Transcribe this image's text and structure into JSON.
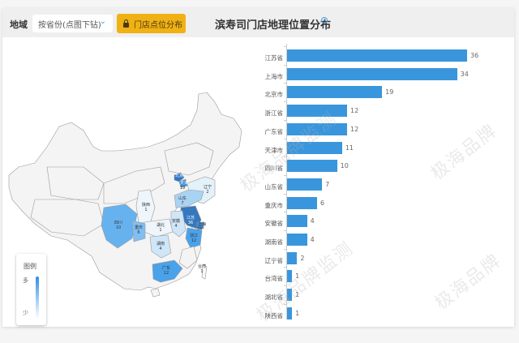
{
  "header": {
    "region_label": "地域",
    "region_select": "按省份(点图下钻)",
    "store_button": "门店点位分布",
    "title": "滨寿司门店地理位置分布",
    "info_icon": "i"
  },
  "legend": {
    "title": "图例",
    "high": "多",
    "low": "少",
    "gradient": [
      "#2f8ee6",
      "#ffffff"
    ]
  },
  "map_labels": [
    {
      "name": "辽宁",
      "value": "2"
    },
    {
      "name": "北京",
      "value": "19"
    },
    {
      "name": "天津",
      "value": "11"
    },
    {
      "name": "山东",
      "value": "7"
    },
    {
      "name": "江苏",
      "value": "36"
    },
    {
      "name": "上海",
      "value": "34"
    },
    {
      "name": "浙江",
      "value": "12"
    },
    {
      "name": "安徽",
      "value": "4"
    },
    {
      "name": "陕西",
      "value": "1"
    },
    {
      "name": "湖北",
      "value": "1"
    },
    {
      "name": "湖南",
      "value": "4"
    },
    {
      "name": "四川",
      "value": "10"
    },
    {
      "name": "重庆",
      "value": "6"
    },
    {
      "name": "广东",
      "value": "12"
    },
    {
      "name": "台湾",
      "value": "1"
    }
  ],
  "watermark": [
    "极海品牌监测",
    "极海品牌"
  ],
  "chart_data": {
    "type": "bar",
    "orientation": "horizontal",
    "title": "滨寿司门店地理位置分布",
    "categories": [
      "江苏省",
      "上海市",
      "北京市",
      "浙江省",
      "广东省",
      "天津市",
      "四川省",
      "山东省",
      "重庆市",
      "安徽省",
      "湖南省",
      "辽宁省",
      "台湾省",
      "湖北省",
      "陕西省"
    ],
    "values": [
      36,
      34,
      19,
      12,
      12,
      11,
      10,
      7,
      6,
      4,
      4,
      2,
      1,
      1,
      1
    ],
    "value_labels": [
      "36",
      "34",
      "19",
      "12",
      "12",
      "11",
      "10",
      "7",
      "6",
      "4",
      "4",
      "2",
      "1",
      "1",
      "1"
    ],
    "bar_color": "#3a96dc",
    "xlabel": "",
    "ylabel": "",
    "xlim": [
      0,
      36
    ],
    "grid": false
  }
}
